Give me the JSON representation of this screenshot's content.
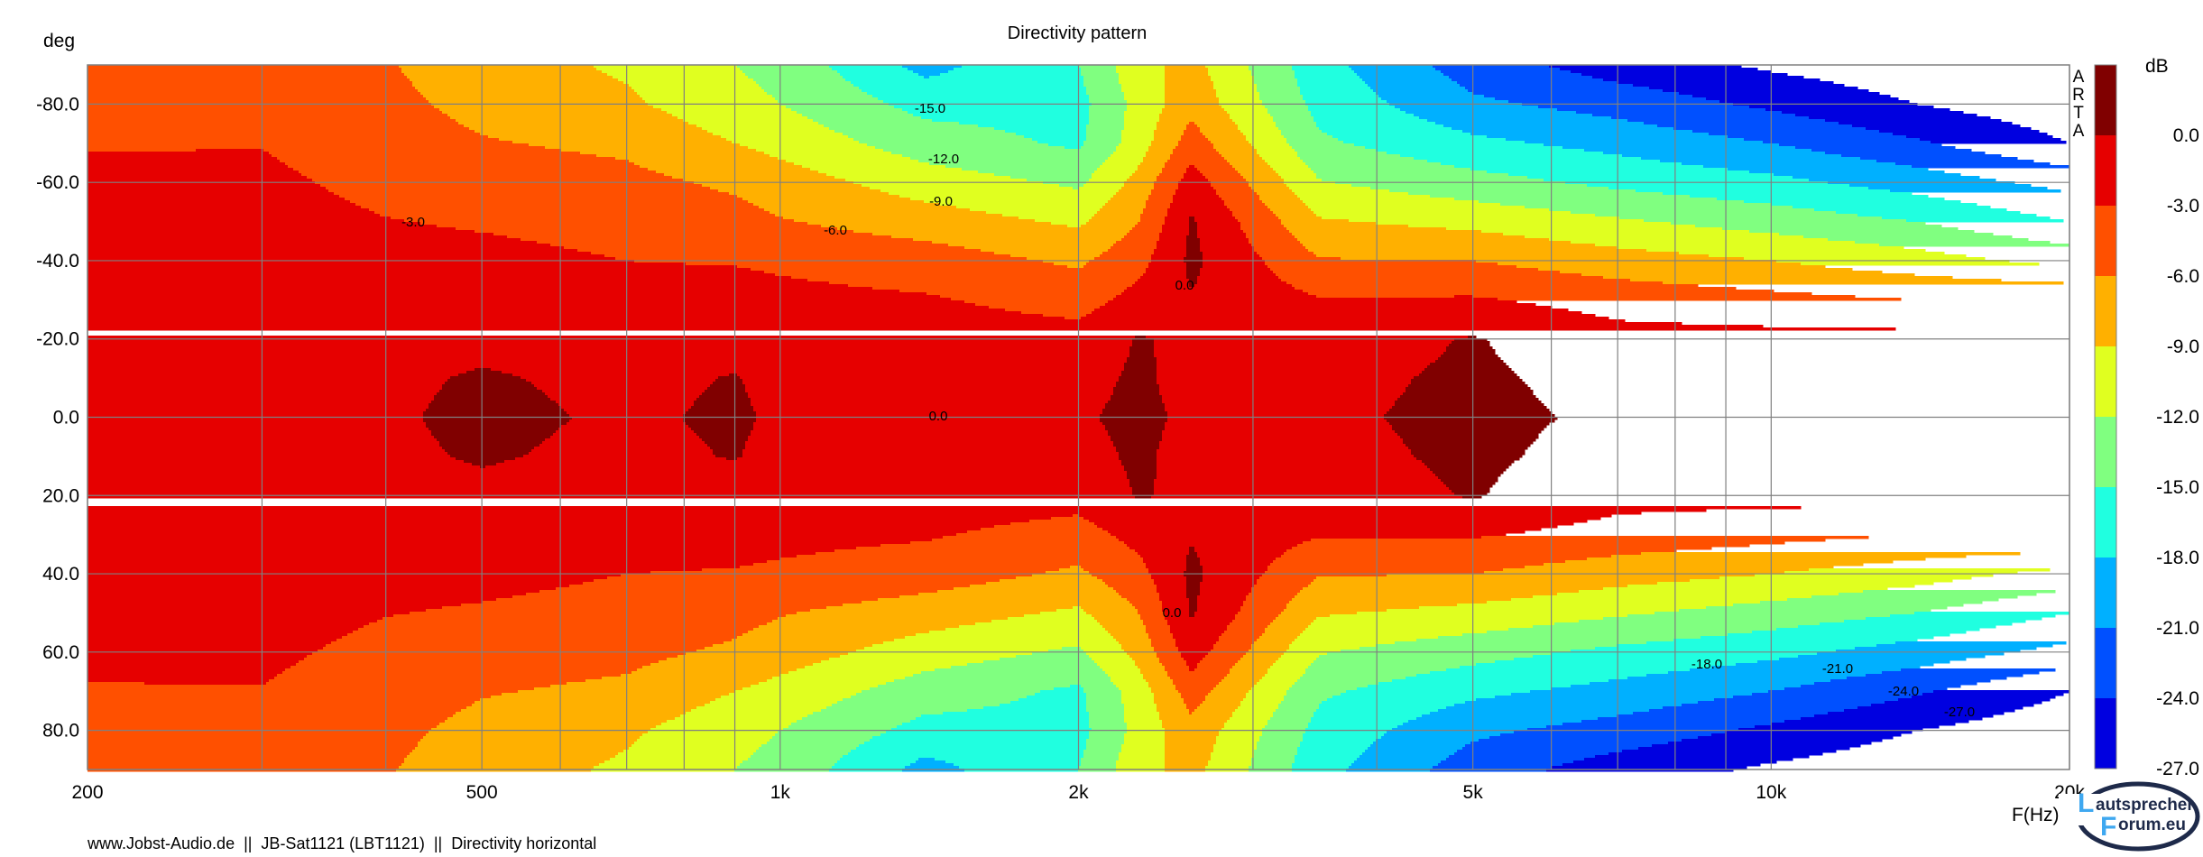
{
  "chart_data": {
    "type": "heatmap",
    "title": "Directivity pattern",
    "xlabel": "F(Hz)",
    "ylabel": "deg",
    "colorbar_label": "dB",
    "xscale": "log",
    "xlim": [
      200,
      20000
    ],
    "ylim": [
      -90,
      90
    ],
    "grid": true,
    "x_ticks": [
      {
        "value": 200,
        "label": "200"
      },
      {
        "value": 500,
        "label": "500"
      },
      {
        "value": 1000,
        "label": "1k"
      },
      {
        "value": 2000,
        "label": "2k"
      },
      {
        "value": 5000,
        "label": "5k"
      },
      {
        "value": 10000,
        "label": "10k"
      },
      {
        "value": 20000,
        "label": "20k"
      }
    ],
    "x_gridlines": [
      200,
      300,
      400,
      500,
      600,
      700,
      800,
      900,
      1000,
      2000,
      3000,
      4000,
      5000,
      6000,
      7000,
      8000,
      9000,
      10000,
      20000
    ],
    "y_ticks": [
      {
        "value": -80,
        "label": "-80.0"
      },
      {
        "value": -60,
        "label": "-60.0"
      },
      {
        "value": -40,
        "label": "-40.0"
      },
      {
        "value": -20,
        "label": "-20.0"
      },
      {
        "value": 0,
        "label": "0.0"
      },
      {
        "value": 20,
        "label": "20.0"
      },
      {
        "value": 40,
        "label": "40.0"
      },
      {
        "value": 60,
        "label": "60.0"
      },
      {
        "value": 80,
        "label": "80.0"
      }
    ],
    "levels": [
      {
        "min": 0,
        "color": "#800000"
      },
      {
        "min": -3,
        "color": "#e60000"
      },
      {
        "min": -6,
        "color": "#ff5000"
      },
      {
        "min": -9,
        "color": "#ffb000"
      },
      {
        "min": -12,
        "color": "#e0ff20"
      },
      {
        "min": -15,
        "color": "#80ff80"
      },
      {
        "min": -18,
        "color": "#20ffe0"
      },
      {
        "min": -21,
        "color": "#00b0ff"
      },
      {
        "min": -24,
        "color": "#0050ff"
      },
      {
        "min": -27,
        "color": "#0000e0"
      },
      {
        "min": -999,
        "color": "#000080"
      }
    ],
    "colorbar_ticks": [
      "0.0",
      "-3.0",
      "-6.0",
      "-9.0",
      "-12.0",
      "-15.0",
      "-18.0",
      "-21.0",
      "-24.0",
      "-27.0"
    ],
    "angles_abs": [
      0,
      10,
      20,
      30,
      40,
      50,
      60,
      70,
      80,
      90
    ],
    "frequencies": [
      200,
      300,
      400,
      500,
      700,
      900,
      1000,
      1400,
      2000,
      2300,
      2600,
      3500,
      5000,
      7000,
      10000,
      14000,
      20000
    ],
    "values_db": [
      [
        -0.5,
        -0.6,
        -0.8,
        -1.0,
        -1.3,
        -1.7,
        -2.3,
        -3.2,
        -4.3,
        -5.0
      ],
      [
        -0.5,
        -0.6,
        -0.8,
        -1.0,
        -1.3,
        -1.8,
        -2.4,
        -3.1,
        -4.8,
        -6.0
      ],
      [
        -0.3,
        -0.4,
        -0.7,
        -1.2,
        -2.0,
        -2.9,
        -3.8,
        -4.6,
        -5.3,
        -5.8
      ],
      [
        0.5,
        0.2,
        -0.5,
        -1.2,
        -2.2,
        -3.3,
        -4.5,
        -5.8,
        -6.8,
        -7.5
      ],
      [
        -0.3,
        -0.5,
        -1.0,
        -1.8,
        -3.0,
        -4.0,
        -5.2,
        -6.6,
        -8.5,
        -9.5
      ],
      [
        0.3,
        0.1,
        -0.8,
        -1.8,
        -3.2,
        -5.0,
        -6.5,
        -9.0,
        -11.0,
        -12.0
      ],
      [
        -0.3,
        -0.6,
        -1.2,
        -2.2,
        -3.5,
        -5.8,
        -7.5,
        -10.0,
        -12.0,
        -13.0
      ],
      [
        -0.4,
        -0.7,
        -1.4,
        -2.7,
        -4.5,
        -7.5,
        -10.5,
        -13.5,
        -16.0,
        -19.0
      ],
      [
        -0.3,
        -0.8,
        -1.8,
        -4.2,
        -6.5,
        -9.5,
        -12.5,
        -15.5,
        -16.0,
        -15.0
      ],
      [
        0.6,
        0.4,
        0.2,
        -2.0,
        -4.0,
        -6.0,
        -8.0,
        -10.5,
        -11.0,
        -10.0
      ],
      [
        -0.5,
        -0.8,
        -0.5,
        -0.2,
        0.6,
        0.3,
        -1.5,
        -4.5,
        -7.0,
        -8.0
      ],
      [
        -0.5,
        -0.8,
        -1.5,
        -2.8,
        -5.8,
        -8.7,
        -11.8,
        -14.5,
        -16.0,
        -17.0
      ],
      [
        0.7,
        0.5,
        0.2,
        -2.7,
        -6.0,
        -9.9,
        -13.9,
        -17.3,
        -20.4,
        -22.5
      ],
      [
        -0.5,
        -1.0,
        -2.0,
        -4.1,
        -7.7,
        -11.6,
        -15.7,
        -19.0,
        -22.2,
        -25.5
      ],
      [
        -0.5,
        -1.0,
        -2.0,
        -5.1,
        -9.0,
        -13.3,
        -17.2,
        -21.0,
        -24.6,
        -27.5
      ],
      [
        -0.5,
        -1.0,
        -2.0,
        -6.0,
        -10.7,
        -15.0,
        -19.3,
        -23.6,
        -27.0,
        -29.0
      ],
      [
        -0.5,
        -1.0,
        -2.0,
        -6.0,
        -13.0,
        -18.0,
        -22.0,
        -27.0,
        -29.0,
        -30.0
      ]
    ],
    "contour_labels": [
      "-15.0",
      "-12.0",
      "-9.0",
      "-6.0",
      "-3.0",
      "0.0",
      "0.0",
      "0.0",
      "-18.0",
      "-21.0",
      "-24.0",
      "-27.0"
    ]
  },
  "watermark": "ARTA",
  "footer": "www.Jobst-Audio.de  ||  JB-Sat1121 (LBT1121)  ||  Directivity horizontal",
  "logo": {
    "line1": "autsprecher",
    "line2": "orum.eu",
    "initial1": "L",
    "initial2": "F"
  }
}
